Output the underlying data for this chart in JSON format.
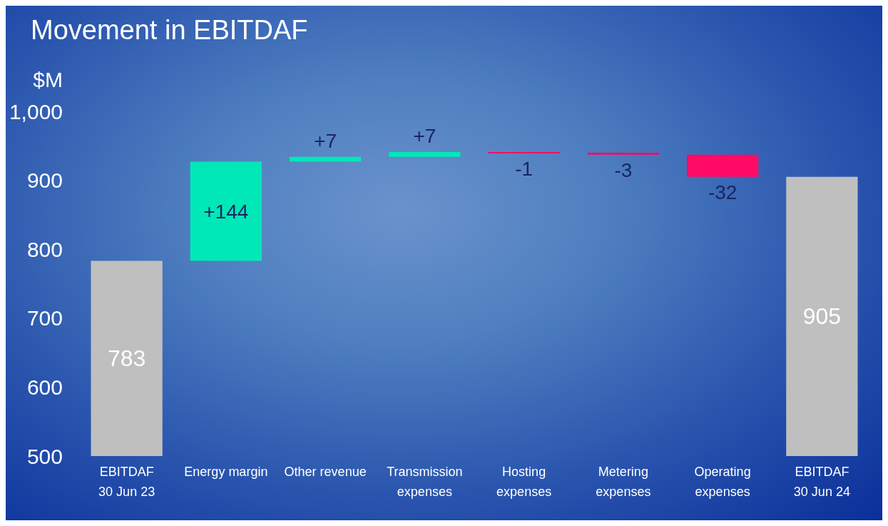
{
  "chart_data": {
    "type": "bar",
    "title": "Movement in EBITDAF",
    "ylabel": "$M",
    "categories": [
      "EBITDAF\n30 Jun 23",
      "Energy margin",
      "Other revenue",
      "Transmission\nexpenses",
      "Hosting\nexpenses",
      "Metering\nexpenses",
      "Operating\nexpenses",
      "EBITDAF\n30 Jun 24"
    ],
    "values": [
      783,
      144,
      7,
      7,
      -1,
      -3,
      -32,
      905
    ],
    "base": [
      null,
      783,
      927,
      934,
      941,
      940,
      937,
      null
    ],
    "colors": [
      "#bfbfbf",
      "#00e8b8",
      "#00e8b8",
      "#00e8b8",
      "#ff0a64",
      "#ff0a64",
      "#ff0a64",
      "#bfbfbf"
    ],
    "value_labels": [
      "783",
      "+144",
      "+7",
      "+7",
      "-1",
      "-3",
      "-32",
      "905"
    ],
    "ylim": [
      500,
      1000
    ],
    "yticks": [
      500,
      600,
      700,
      800,
      900,
      {
        "value": 1000,
        "label": "1,000"
      }
    ],
    "grid": false
  }
}
